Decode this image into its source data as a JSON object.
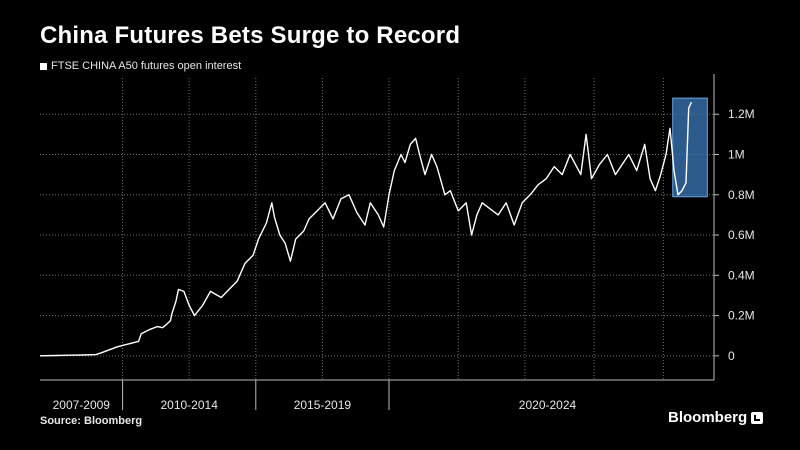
{
  "chart_data": {
    "type": "line",
    "title": "China Futures Bets Surge to Record",
    "series": [
      {
        "name": "FTSE CHINA A50 futures open interest",
        "color": "#ffffff",
        "points": [
          [
            2006.9,
            0
          ],
          [
            2007.5,
            1500
          ],
          [
            2008.0,
            3000
          ],
          [
            2008.5,
            4000
          ],
          [
            2009.0,
            6000
          ],
          [
            2009.2,
            15000
          ],
          [
            2009.5,
            30000
          ],
          [
            2009.8,
            45000
          ],
          [
            2010.0,
            52000
          ],
          [
            2010.3,
            62000
          ],
          [
            2010.6,
            72000
          ],
          [
            2010.7,
            110000
          ],
          [
            2011.0,
            130000
          ],
          [
            2011.3,
            145000
          ],
          [
            2011.5,
            140000
          ],
          [
            2011.6,
            150000
          ],
          [
            2011.8,
            175000
          ],
          [
            2011.85,
            210000
          ],
          [
            2012.0,
            270000
          ],
          [
            2012.1,
            330000
          ],
          [
            2012.3,
            320000
          ],
          [
            2012.5,
            250000
          ],
          [
            2012.7,
            200000
          ],
          [
            2013.0,
            250000
          ],
          [
            2013.3,
            320000
          ],
          [
            2013.7,
            290000
          ],
          [
            2014.0,
            330000
          ],
          [
            2014.3,
            370000
          ],
          [
            2014.6,
            460000
          ],
          [
            2014.9,
            500000
          ],
          [
            2015.1,
            580000
          ],
          [
            2015.4,
            660000
          ],
          [
            2015.6,
            760000
          ],
          [
            2015.7,
            690000
          ],
          [
            2015.9,
            600000
          ],
          [
            2016.1,
            560000
          ],
          [
            2016.3,
            470000
          ],
          [
            2016.5,
            580000
          ],
          [
            2016.8,
            620000
          ],
          [
            2017.0,
            680000
          ],
          [
            2017.3,
            720000
          ],
          [
            2017.6,
            760000
          ],
          [
            2017.9,
            680000
          ],
          [
            2018.2,
            780000
          ],
          [
            2018.5,
            800000
          ],
          [
            2018.8,
            710000
          ],
          [
            2019.1,
            650000
          ],
          [
            2019.3,
            760000
          ],
          [
            2019.6,
            700000
          ],
          [
            2019.8,
            640000
          ],
          [
            2020.0,
            800000
          ],
          [
            2020.2,
            920000
          ],
          [
            2020.45,
            1000000
          ],
          [
            2020.6,
            960000
          ],
          [
            2020.8,
            1050000
          ],
          [
            2021.0,
            1080000
          ],
          [
            2021.15,
            1000000
          ],
          [
            2021.35,
            900000
          ],
          [
            2021.6,
            1000000
          ],
          [
            2021.8,
            940000
          ],
          [
            2022.1,
            800000
          ],
          [
            2022.3,
            820000
          ],
          [
            2022.6,
            720000
          ],
          [
            2022.9,
            760000
          ],
          [
            2023.1,
            600000
          ],
          [
            2023.3,
            700000
          ],
          [
            2023.5,
            760000
          ],
          [
            2023.8,
            730000
          ],
          [
            2024.1,
            700000
          ],
          [
            2024.4,
            760000
          ],
          [
            2024.7,
            650000
          ],
          [
            2025.0,
            760000
          ],
          [
            2025.3,
            800000
          ],
          [
            2025.6,
            850000
          ],
          [
            2025.9,
            880000
          ],
          [
            2026.2,
            940000
          ],
          [
            2026.5,
            900000
          ],
          [
            2026.8,
            1000000
          ],
          [
            2027.0,
            950000
          ],
          [
            2027.2,
            900000
          ],
          [
            2027.4,
            1100000
          ],
          [
            2027.6,
            880000
          ],
          [
            2027.9,
            950000
          ],
          [
            2028.2,
            1000000
          ],
          [
            2028.5,
            900000
          ],
          [
            2028.8,
            960000
          ],
          [
            2029.0,
            1000000
          ],
          [
            2029.3,
            920000
          ],
          [
            2029.6,
            1050000
          ],
          [
            2029.8,
            880000
          ],
          [
            2030.0,
            820000
          ],
          [
            2030.2,
            900000
          ],
          [
            2030.4,
            1000000
          ],
          [
            2030.55,
            1130000
          ],
          [
            2030.7,
            920000
          ],
          [
            2030.85,
            800000
          ],
          [
            2031.0,
            820000
          ],
          [
            2031.15,
            860000
          ],
          [
            2031.25,
            1230000
          ],
          [
            2031.35,
            1260000
          ]
        ]
      }
    ],
    "xlim": [
      2006.9,
      2032.2
    ],
    "ylim": [
      -120000,
      1380000
    ],
    "yticks": [
      0,
      200000,
      400000,
      600000,
      800000,
      1000000,
      1200000
    ],
    "ytick_labels": [
      "0",
      "0.2M",
      "0.4M",
      "0.6M",
      "0.8M",
      "1M",
      "1.2M"
    ],
    "x_group_labels": [
      {
        "label": "2007-2009",
        "from": 2006.9,
        "to": 2010.0
      },
      {
        "label": "2010-2014",
        "from": 2010.0,
        "to": 2015.0
      },
      {
        "label": "2015-2019",
        "from": 2015.0,
        "to": 2020.0
      },
      {
        "label": "2020-2024",
        "from": 2020.0,
        "to": 2031.9
      }
    ],
    "x_vertical_gridlines": [
      2010.0,
      2012.5,
      2015.0,
      2017.5,
      2020.0,
      2022.6,
      2025.1,
      2027.7,
      2030.3
    ],
    "x_separators": [
      2010.0,
      2015.0,
      2020.0
    ],
    "grid": true,
    "legend_position": "top-left",
    "highlight": {
      "from": 2030.65,
      "to": 2031.95,
      "ymin": 790000,
      "ymax": 1280000,
      "color": "#3b78b8"
    }
  },
  "footer": {
    "source": "Source: Bloomberg",
    "brand": "Bloomberg"
  }
}
